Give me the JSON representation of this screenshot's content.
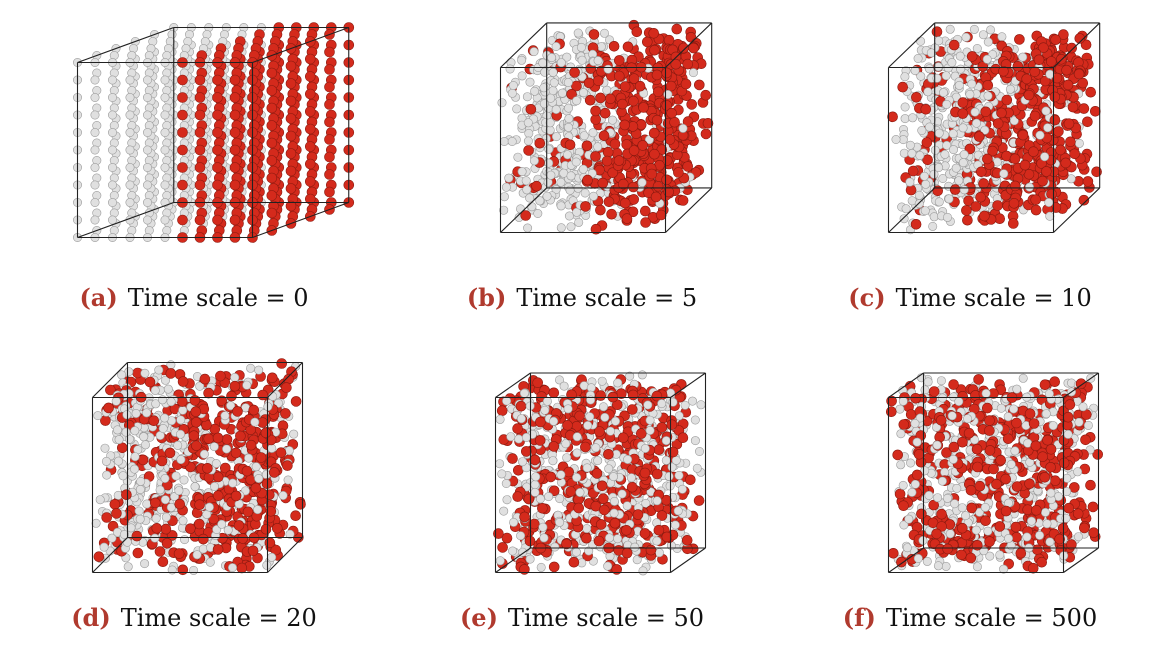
{
  "figure": {
    "particle_colors": {
      "species_a": "#e0e0e0",
      "species_b": "#d42a1c"
    },
    "panels": [
      {
        "label": "(a)",
        "caption": "Time scale = 0",
        "time_scale": 0,
        "mixing": 0.0
      },
      {
        "label": "(b)",
        "caption": "Time scale = 5",
        "time_scale": 5,
        "mixing": 0.2
      },
      {
        "label": "(c)",
        "caption": "Time scale = 10",
        "time_scale": 10,
        "mixing": 0.35
      },
      {
        "label": "(d)",
        "caption": "Time scale = 20",
        "time_scale": 20,
        "mixing": 0.55
      },
      {
        "label": "(e)",
        "caption": "Time scale = 50",
        "time_scale": 50,
        "mixing": 0.9
      },
      {
        "label": "(f)",
        "caption": "Time scale = 500",
        "time_scale": 500,
        "mixing": 1.0
      }
    ]
  }
}
